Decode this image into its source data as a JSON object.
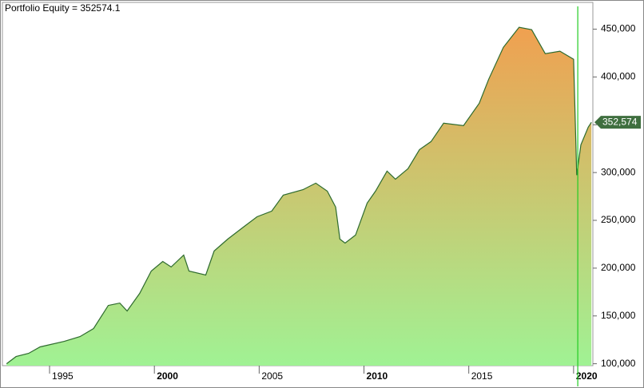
{
  "chart_data": {
    "type": "area",
    "title": "Portfolio Equity = 352574.1",
    "x": [
      1992.95,
      1993.4,
      1994.0,
      1994.55,
      1995.7,
      1996.45,
      1997.1,
      1997.8,
      1998.35,
      1998.7,
      1999.3,
      1999.85,
      2000.4,
      2000.8,
      2001.4,
      2001.65,
      2002.45,
      2002.85,
      2003.5,
      2004.25,
      2004.9,
      2005.6,
      2006.15,
      2007.1,
      2007.7,
      2008.25,
      2008.65,
      2008.85,
      2009.1,
      2009.6,
      2010.15,
      2010.55,
      2011.1,
      2011.5,
      2012.1,
      2012.65,
      2013.2,
      2013.8,
      2014.75,
      2015.5,
      2015.95,
      2016.65,
      2017.4,
      2018.0,
      2018.65,
      2019.35,
      2020.0,
      2020.15,
      2020.35,
      2020.7,
      2020.85
    ],
    "series": [
      {
        "name": "Portfolio Equity",
        "color": "#2e6b2e",
        "top_color": "#f0a050",
        "bottom_color": "#a0f294",
        "values": [
          100000,
          107500,
          110900,
          117600,
          123400,
          128400,
          136800,
          161000,
          163500,
          155200,
          173600,
          197000,
          207000,
          201200,
          213700,
          197000,
          192800,
          217900,
          230400,
          243000,
          253800,
          259700,
          276400,
          282200,
          288900,
          280600,
          263900,
          230400,
          226200,
          234600,
          268000,
          280600,
          301500,
          293100,
          304000,
          324000,
          332400,
          351600,
          349100,
          372500,
          397600,
          431000,
          452000,
          449400,
          424400,
          427000,
          418500,
          297300,
          329000,
          347500,
          352574.1
        ]
      }
    ],
    "last_label": {
      "value": 352574.1,
      "label": "352,574"
    },
    "cursor_x": 2020.2,
    "cursor_color": "#22cc22",
    "xlim": [
      1992.75,
      2020.92
    ],
    "xticks": [
      1995,
      2000,
      2005,
      2010,
      2015,
      2020
    ],
    "ylim": [
      98000,
      478000
    ],
    "yticks": [
      {
        "value": 100000,
        "label": "100,000"
      },
      {
        "value": 150000,
        "label": "150,000"
      },
      {
        "value": 200000,
        "label": "200,000"
      },
      {
        "value": 250000,
        "label": "250,000"
      },
      {
        "value": 300000,
        "label": "300,000"
      },
      {
        "value": 350000,
        "label": "350,000"
      },
      {
        "value": 400000,
        "label": "400,000"
      },
      {
        "value": 450000,
        "label": "450,000"
      }
    ]
  }
}
